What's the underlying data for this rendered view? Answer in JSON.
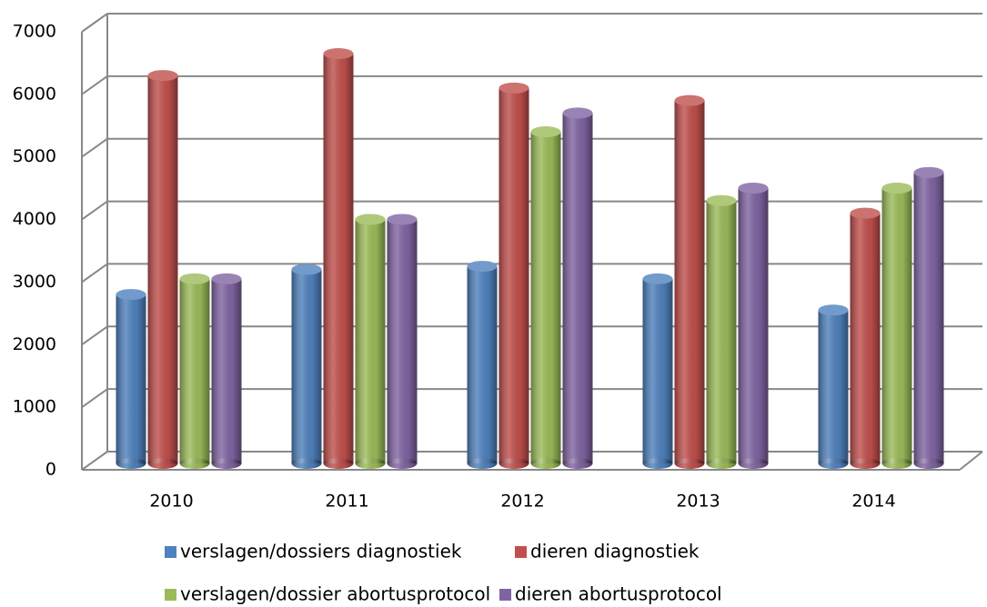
{
  "chart_data": {
    "type": "bar3d",
    "categories": [
      "2010",
      "2011",
      "2012",
      "2013",
      "2014"
    ],
    "series": [
      {
        "name": "verslagen/dossiers diagnostiek",
        "color": "#4f81bd",
        "values": [
          2700,
          3100,
          3150,
          2950,
          2450
        ]
      },
      {
        "name": "dieren diagnostiek",
        "color": "#c0504d",
        "values": [
          6200,
          6550,
          6000,
          5800,
          4000
        ]
      },
      {
        "name": "verslagen/dossier abortusprotocol",
        "color": "#9bbb59",
        "values": [
          2950,
          3900,
          5300,
          4200,
          4400
        ]
      },
      {
        "name": "dieren abortusprotocol",
        "color": "#8064a2",
        "values": [
          2950,
          3900,
          5600,
          4400,
          4650
        ]
      }
    ],
    "ylim": [
      0,
      7000
    ],
    "yticks": [
      0,
      1000,
      2000,
      3000,
      4000,
      5000,
      6000,
      7000
    ],
    "grid": true,
    "legend": "bottom"
  }
}
